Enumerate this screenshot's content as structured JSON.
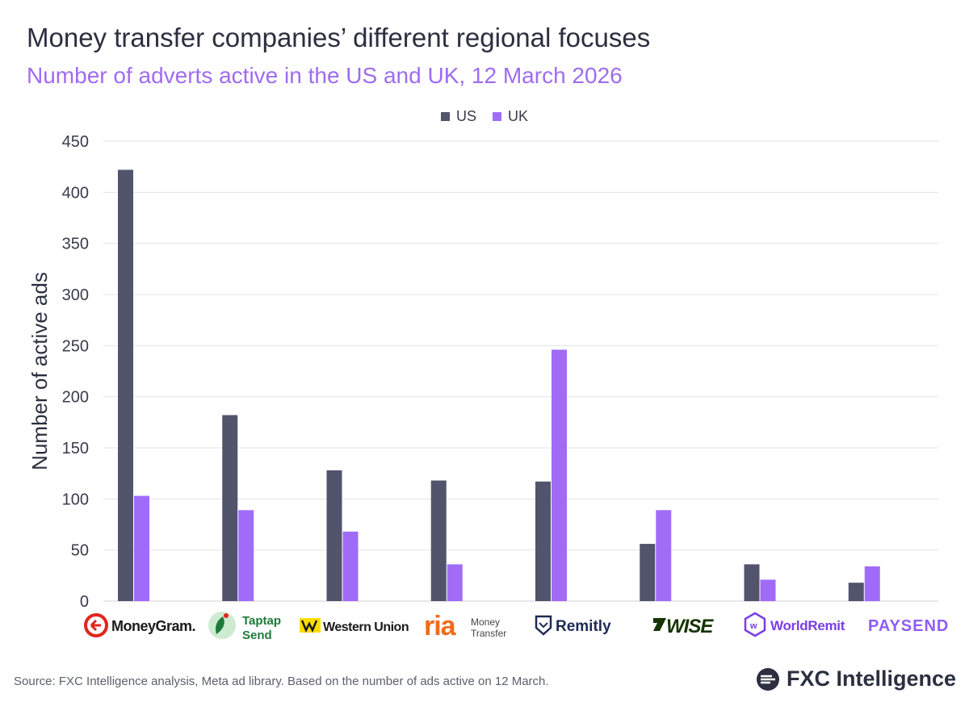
{
  "header": {
    "title": "Money transfer companies’ different regional focuses",
    "subtitle": "Number of adverts active in the US and UK, 12 March 2026"
  },
  "colors": {
    "us": "#51546b",
    "uk": "#a06cf7",
    "grid": "#e3e3e8",
    "axis_text": "#3a3a4a"
  },
  "chart_data": {
    "type": "bar",
    "ylabel": "Number of active ads",
    "ylim": [
      0,
      450
    ],
    "yticks": [
      0,
      50,
      100,
      150,
      200,
      250,
      300,
      350,
      400,
      450
    ],
    "grid": true,
    "legend_position": "top-center",
    "categories": [
      "MoneyGram",
      "Taptap Send",
      "Western Union",
      "ria Money Transfer",
      "Remitly",
      "WISE",
      "WorldRemit",
      "PAYSEND"
    ],
    "series": [
      {
        "name": "US",
        "values": [
          422,
          182,
          128,
          118,
          117,
          56,
          36,
          18
        ]
      },
      {
        "name": "UK",
        "values": [
          103,
          89,
          68,
          36,
          246,
          89,
          21,
          34
        ]
      }
    ]
  },
  "logos": {
    "moneygram": "MoneyGram.",
    "taptap_line1": "Taptap",
    "taptap_line2": "Send",
    "western_union": "Western Union",
    "ria": "ria",
    "ria_line1": "Money",
    "ria_line2": "Transfer",
    "remitly": "Remitly",
    "wise": "WISE",
    "worldremit": "WorldRemit",
    "paysend": "PAYSEND"
  },
  "footer": {
    "source": "Source: FXC Intelligence analysis, Meta ad library. Based on the number of ads active on 12 March.",
    "brand": "FXC Intelligence",
    "brand_icon": "fxc-logo-icon"
  }
}
